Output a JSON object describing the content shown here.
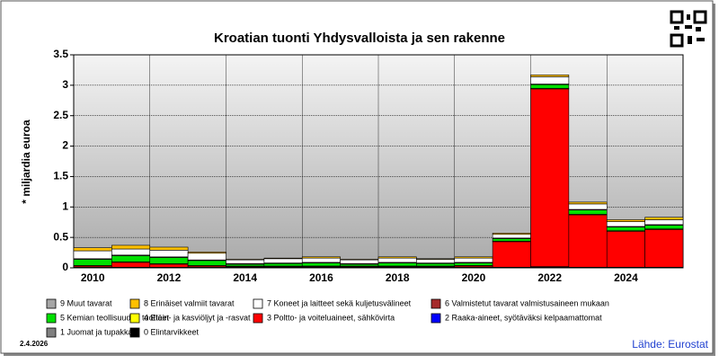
{
  "chart_data": {
    "type": "stacked_bar",
    "title": "Kroatian tuonti Yhdysvalloista ja sen rakenne",
    "y_label": "* miljardia euroa",
    "date": "2.4.2026",
    "source": "Lähde: Eurostat",
    "categories": [
      "2010",
      null,
      "2012",
      null,
      "2014",
      null,
      "2016",
      null,
      "2018",
      null,
      "2020",
      null,
      "2022",
      null,
      "2024",
      null
    ],
    "ylim": [
      0,
      3.5
    ],
    "yticks": [
      0,
      0.5,
      1,
      1.5,
      2,
      2.5,
      3,
      3.5
    ],
    "grid": true,
    "series": [
      {
        "name": "9 Muut tavarat",
        "color": "#a6a6a6",
        "values": [
          0,
          0,
          0,
          0,
          0,
          0,
          0,
          0,
          0,
          0,
          0,
          0,
          0,
          0,
          0,
          0
        ]
      },
      {
        "name": "8 Erinäiset valmiit tavarat",
        "color": "#ffc000",
        "values": [
          0.05,
          0.06,
          0.05,
          0.02,
          0.01,
          0.01,
          0.02,
          0.01,
          0.02,
          0.01,
          0.02,
          0.02,
          0.03,
          0.03,
          0.03,
          0.04
        ]
      },
      {
        "name": "7 Koneet ja laitteet sekä kuljetusvälineet",
        "color": "#ffffff",
        "values": [
          0.13,
          0.1,
          0.11,
          0.11,
          0.06,
          0.07,
          0.07,
          0.06,
          0.07,
          0.06,
          0.07,
          0.06,
          0.12,
          0.09,
          0.08,
          0.08
        ]
      },
      {
        "name": "6 Valmistetut tavarat valmistusaineen mukaan",
        "color": "#a52a2a",
        "values": [
          0.01,
          0.01,
          0.01,
          0.01,
          0.01,
          0.01,
          0.01,
          0.01,
          0.01,
          0.01,
          0.01,
          0.01,
          0.01,
          0.01,
          0.01,
          0.01
        ]
      },
      {
        "name": "5 Kemian teollisuuden tuotteet",
        "color": "#00e000",
        "values": [
          0.1,
          0.1,
          0.1,
          0.08,
          0.03,
          0.04,
          0.05,
          0.03,
          0.05,
          0.04,
          0.04,
          0.04,
          0.06,
          0.07,
          0.06,
          0.06
        ]
      },
      {
        "name": "4 Eläin- ja kasviöljyt ja -rasvat",
        "color": "#ffff00",
        "values": [
          0.01,
          0.01,
          0.01,
          0.01,
          0.01,
          0.01,
          0.01,
          0.01,
          0.01,
          0.01,
          0.01,
          0.01,
          0.01,
          0.01,
          0.01,
          0.01
        ]
      },
      {
        "name": "3 Poltto- ja voiteluaineet, sähkövirta",
        "color": "#ff0000",
        "values": [
          0.02,
          0.08,
          0.05,
          0.02,
          0.01,
          0.01,
          0.01,
          0.01,
          0.01,
          0.01,
          0.02,
          0.42,
          2.92,
          0.86,
          0.59,
          0.62
        ]
      },
      {
        "name": "2 Raaka-aineet, syötäväksi kelpaamattomat",
        "color": "#0000ff",
        "values": [
          0,
          0,
          0,
          0,
          0,
          0,
          0,
          0,
          0,
          0,
          0,
          0,
          0,
          0,
          0,
          0
        ]
      },
      {
        "name": "1 Juomat ja tupakka",
        "color": "#808080",
        "values": [
          0,
          0,
          0,
          0,
          0,
          0,
          0,
          0,
          0,
          0,
          0,
          0,
          0,
          0,
          0,
          0
        ]
      },
      {
        "name": "0 Elintarvikkeet",
        "color": "#000000",
        "values": [
          0.01,
          0.01,
          0.01,
          0.01,
          0.01,
          0.01,
          0.01,
          0.01,
          0.01,
          0.01,
          0.01,
          0.01,
          0.02,
          0.01,
          0.01,
          0.01
        ]
      }
    ]
  }
}
